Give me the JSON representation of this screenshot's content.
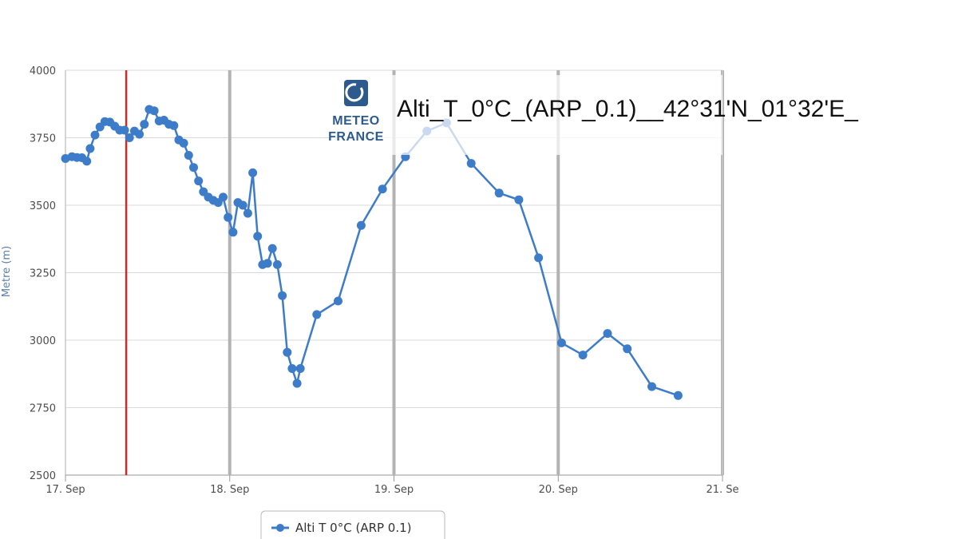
{
  "chart_data": {
    "type": "line",
    "title": "Alti_T_0°C_(ARP_0.1)__42°31'N_01°32'E_",
    "ylabel": "Metre (m)",
    "xlabel": "",
    "ylim": [
      2500,
      4000
    ],
    "yticks": [
      4000,
      3750,
      3500,
      3250,
      3000,
      2750,
      2500
    ],
    "xticks": [
      {
        "x": 0,
        "label": "17. Sep"
      },
      {
        "x": 1,
        "label": "18. Sep"
      },
      {
        "x": 2,
        "label": "19. Sep"
      },
      {
        "x": 3,
        "label": "20. Sep"
      },
      {
        "x": 4,
        "label": "21. Se"
      }
    ],
    "xlim": [
      0,
      4
    ],
    "current_time_x": 0.37,
    "grid": true,
    "legend": {
      "position": "bottom-center",
      "label": "Alti T 0°C (ARP 0.1)"
    },
    "logo": {
      "line1": "METEO",
      "line2": "FRANCE"
    },
    "colors": {
      "series": "#3d7cc9",
      "current_time": "#d62728",
      "grid": "#d9d9d9",
      "day_line": "#b3b3b3"
    },
    "series": [
      {
        "name": "Alti T 0°C (ARP 0.1)",
        "points": [
          [
            0.0,
            3673
          ],
          [
            0.04,
            3680
          ],
          [
            0.07,
            3677
          ],
          [
            0.1,
            3676
          ],
          [
            0.13,
            3663
          ],
          [
            0.15,
            3710
          ],
          [
            0.18,
            3760
          ],
          [
            0.21,
            3790
          ],
          [
            0.24,
            3810
          ],
          [
            0.27,
            3808
          ],
          [
            0.3,
            3793
          ],
          [
            0.33,
            3778
          ],
          [
            0.36,
            3778
          ],
          [
            0.39,
            3750
          ],
          [
            0.42,
            3775
          ],
          [
            0.45,
            3763
          ],
          [
            0.48,
            3800
          ],
          [
            0.51,
            3855
          ],
          [
            0.54,
            3850
          ],
          [
            0.57,
            3812
          ],
          [
            0.6,
            3815
          ],
          [
            0.63,
            3800
          ],
          [
            0.66,
            3795
          ],
          [
            0.69,
            3742
          ],
          [
            0.72,
            3730
          ],
          [
            0.75,
            3685
          ],
          [
            0.78,
            3640
          ],
          [
            0.81,
            3590
          ],
          [
            0.84,
            3550
          ],
          [
            0.87,
            3530
          ],
          [
            0.9,
            3518
          ],
          [
            0.93,
            3510
          ],
          [
            0.96,
            3530
          ],
          [
            0.99,
            3455
          ],
          [
            1.02,
            3400
          ],
          [
            1.05,
            3510
          ],
          [
            1.08,
            3500
          ],
          [
            1.11,
            3470
          ],
          [
            1.14,
            3620
          ],
          [
            1.17,
            3385
          ],
          [
            1.2,
            3280
          ],
          [
            1.23,
            3285
          ],
          [
            1.26,
            3340
          ],
          [
            1.29,
            3280
          ],
          [
            1.32,
            3165
          ],
          [
            1.35,
            2955
          ],
          [
            1.38,
            2895
          ],
          [
            1.41,
            2840
          ],
          [
            1.43,
            2895
          ],
          [
            1.53,
            3095
          ],
          [
            1.66,
            3145
          ],
          [
            1.8,
            3425
          ],
          [
            1.93,
            3560
          ],
          [
            2.07,
            3680
          ],
          [
            2.2,
            3775
          ],
          [
            2.32,
            3805
          ],
          [
            2.47,
            3655
          ],
          [
            2.64,
            3545
          ],
          [
            2.76,
            3520
          ],
          [
            2.88,
            3305
          ],
          [
            3.02,
            2990
          ],
          [
            3.15,
            2945
          ],
          [
            3.3,
            3025
          ],
          [
            3.42,
            2968
          ],
          [
            3.57,
            2828
          ],
          [
            3.73,
            2795
          ]
        ]
      }
    ]
  }
}
